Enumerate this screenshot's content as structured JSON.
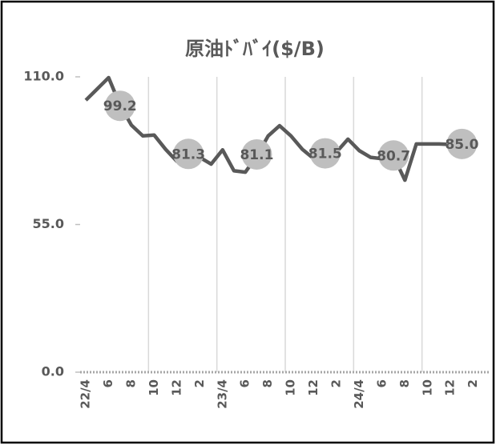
{
  "chart_data": {
    "type": "line",
    "title": "原油ﾄﾞﾊﾞｲ($/B)",
    "categories": [
      "22/4",
      null,
      "6",
      null,
      "8",
      null,
      "10",
      null,
      "12",
      null,
      "2",
      null,
      "23/4",
      null,
      "6",
      null,
      "8",
      null,
      "10",
      null,
      "12",
      null,
      "2",
      null,
      "24/4",
      null,
      "6",
      null,
      "8",
      null,
      "10",
      null,
      "12",
      null,
      "2",
      null
    ],
    "series": [
      {
        "color": "#595959",
        "values": [
          101.3,
          105.5,
          109.7,
          99.5,
          92.0,
          88.0,
          88.3,
          83.0,
          78.5,
          79.5,
          80.0,
          77.5,
          82.8,
          75.0,
          74.5,
          80.5,
          88.0,
          91.8,
          88.0,
          83.0,
          79.5,
          79.0,
          82.0,
          86.8,
          82.5,
          80.0,
          79.5,
          80.5,
          71.5,
          85.0,
          85.0,
          85.0,
          84.8,
          84.5,
          85.2,
          null
        ]
      },
      {
        "color": "#bfbfbf",
        "marker": "circle",
        "line": false,
        "values": [
          null,
          null,
          null,
          99.2,
          null,
          null,
          null,
          null,
          null,
          81.3,
          null,
          null,
          null,
          null,
          null,
          81.1,
          null,
          null,
          null,
          null,
          null,
          81.5,
          null,
          null,
          null,
          null,
          null,
          80.7,
          null,
          null,
          null,
          null,
          null,
          85.0,
          null,
          null
        ],
        "value_labels": [
          null,
          null,
          null,
          "99.2",
          null,
          null,
          null,
          null,
          null,
          "81.3",
          null,
          null,
          null,
          null,
          null,
          "81.1",
          null,
          null,
          null,
          null,
          null,
          "81.5",
          null,
          null,
          null,
          null,
          null,
          "80.7",
          null,
          null,
          null,
          null,
          null,
          "85.0",
          null,
          null
        ]
      }
    ],
    "ylim": [
      0,
      110
    ],
    "yticks": [
      {
        "value": 0,
        "label": "0.0"
      },
      {
        "value": 55,
        "label": "55.0"
      },
      {
        "value": 110,
        "label": "110.0"
      }
    ]
  }
}
